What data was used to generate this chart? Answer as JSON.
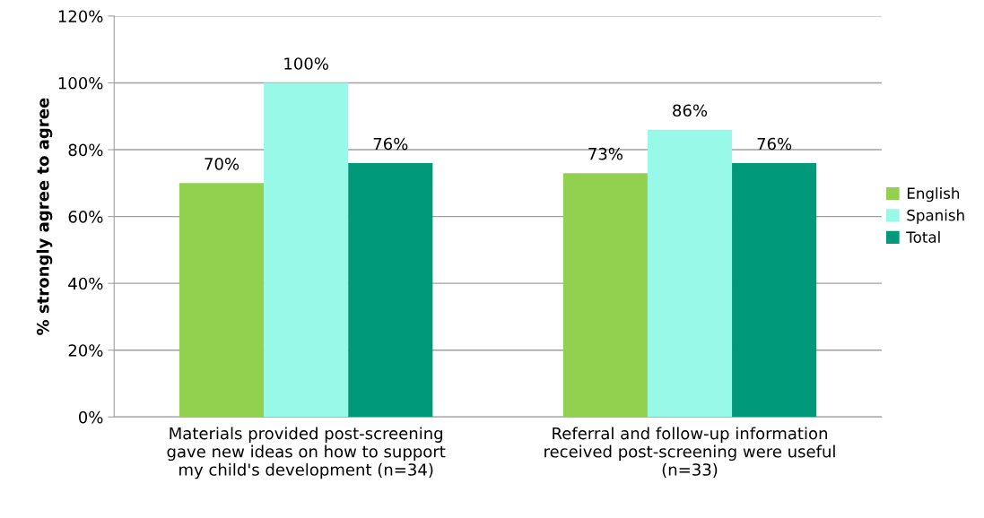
{
  "chart_data": {
    "type": "bar",
    "ylabel": "% strongly agree to agree",
    "categories": [
      "Materials provided post-screening\ngave new ideas on how to support\nmy child's development (n=34)",
      "Referral and follow-up information\nreceived post-screening were useful\n(n=33)"
    ],
    "series": [
      {
        "name": "English",
        "color": "#92d050",
        "values": [
          70,
          73
        ],
        "value_labels": [
          "70%",
          "73%"
        ]
      },
      {
        "name": "Spanish",
        "color": "#99f9e9",
        "values": [
          100,
          86
        ],
        "value_labels": [
          "100%",
          "86%"
        ]
      },
      {
        "name": "Total",
        "color": "#00997a",
        "values": [
          76,
          76
        ],
        "value_labels": [
          "76%",
          "76%"
        ]
      }
    ],
    "ylim": [
      0,
      120
    ],
    "yticks": [
      {
        "value": 0,
        "label": "0%"
      },
      {
        "value": 20,
        "label": "20%"
      },
      {
        "value": 40,
        "label": "40%"
      },
      {
        "value": 60,
        "label": "60%"
      },
      {
        "value": 80,
        "label": "80%"
      },
      {
        "value": 100,
        "label": "100%"
      },
      {
        "value": 120,
        "label": "120%"
      }
    ],
    "grid": "y",
    "legend": "right"
  }
}
